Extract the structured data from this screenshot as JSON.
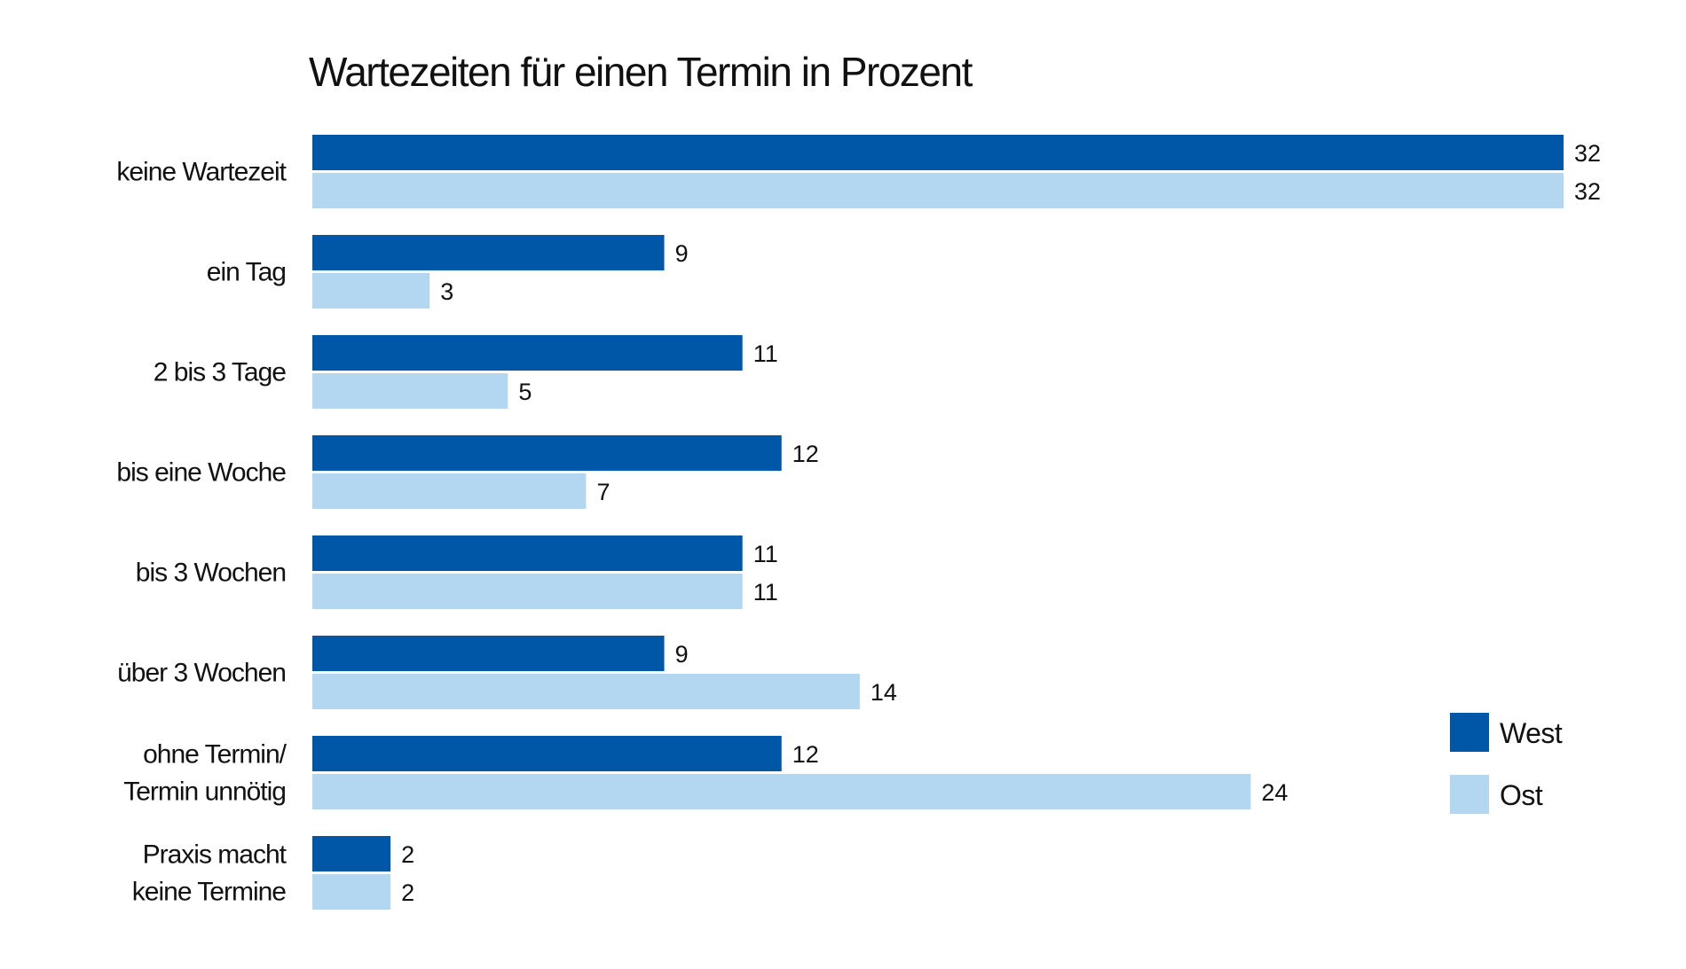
{
  "chart_data": {
    "type": "bar",
    "orientation": "horizontal",
    "title": "Wartezeiten für einen Termin in Prozent",
    "categories": [
      [
        "keine Wartezeit"
      ],
      [
        "ein Tag"
      ],
      [
        "2 bis 3 Tage"
      ],
      [
        "bis eine Woche"
      ],
      [
        "bis 3 Wochen"
      ],
      [
        "über 3 Wochen"
      ],
      [
        "ohne Termin/",
        "Termin unnötig"
      ],
      [
        "Praxis macht",
        "keine Termine"
      ]
    ],
    "series": [
      {
        "name": "West",
        "color": "#0057a8",
        "values": [
          32,
          9,
          11,
          12,
          11,
          9,
          12,
          2
        ]
      },
      {
        "name": "Ost",
        "color": "#b3d7f1",
        "values": [
          32,
          3,
          5,
          7,
          11,
          14,
          24,
          2
        ]
      }
    ],
    "xlim": [
      0,
      32
    ],
    "grid": false,
    "legend_position": "bottom-right"
  }
}
